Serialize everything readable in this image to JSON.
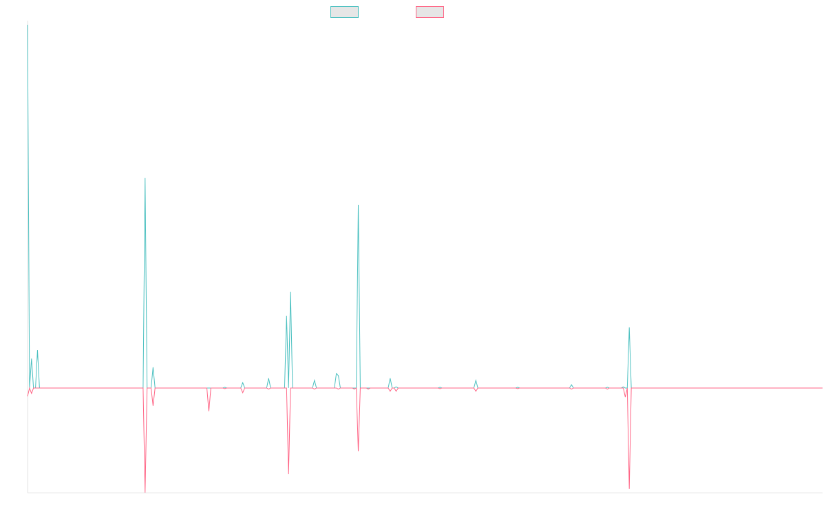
{
  "chart_data": {
    "type": "line",
    "title": "",
    "xlabel": "",
    "ylabel": "",
    "n_points": 400,
    "ylim": [
      -28.8,
      100
    ],
    "grid": false,
    "legend_position": "top-center",
    "series": [
      {
        "name": "",
        "color": "#4bc0c0",
        "points": [
          [
            0,
            100
          ],
          [
            2,
            8.1
          ],
          [
            5,
            10.4
          ],
          [
            59,
            57.8
          ],
          [
            63,
            5.7
          ],
          [
            99,
            0.2
          ],
          [
            108,
            1.5
          ],
          [
            121,
            2.7
          ],
          [
            130,
            19.9
          ],
          [
            132,
            26.5
          ],
          [
            144,
            2.1
          ],
          [
            155,
            4.0
          ],
          [
            156,
            3.4
          ],
          [
            166,
            50.4
          ],
          [
            182,
            2.7
          ],
          [
            185,
            0.3
          ],
          [
            207,
            0.2
          ],
          [
            225,
            2.1
          ],
          [
            246,
            0.2
          ],
          [
            273,
            0.9
          ],
          [
            291,
            0.2
          ],
          [
            299,
            0.3
          ],
          [
            302,
            16.7
          ]
        ]
      },
      {
        "name": "",
        "color": "#ff6384",
        "points": [
          [
            0,
            -2.3
          ],
          [
            2,
            -1.5
          ],
          [
            59,
            -28.8
          ],
          [
            63,
            -4.9
          ],
          [
            91,
            -6.4
          ],
          [
            99,
            -0.2
          ],
          [
            108,
            -1.3
          ],
          [
            121,
            -0.3
          ],
          [
            131,
            -23.7
          ],
          [
            144,
            -0.3
          ],
          [
            156,
            -0.3
          ],
          [
            164,
            -0.3
          ],
          [
            166,
            -17.4
          ],
          [
            171,
            -0.3
          ],
          [
            182,
            -0.9
          ],
          [
            185,
            -0.9
          ],
          [
            207,
            -0.2
          ],
          [
            225,
            -0.9
          ],
          [
            246,
            -0.2
          ],
          [
            273,
            -0.3
          ],
          [
            291,
            -0.3
          ],
          [
            300,
            -2.5
          ],
          [
            302,
            -27.8
          ]
        ]
      }
    ]
  }
}
